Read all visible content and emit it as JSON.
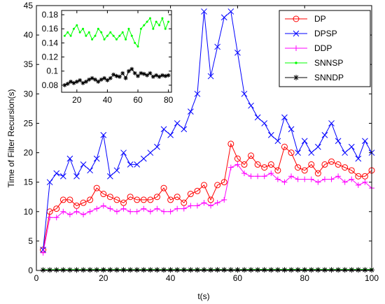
{
  "chart_data": [
    {
      "type": "line",
      "xlabel": "t(s)",
      "ylabel": "Time of Filter Recursion(s)",
      "x": [
        2,
        4,
        6,
        8,
        10,
        12,
        14,
        16,
        18,
        20,
        22,
        24,
        26,
        28,
        30,
        32,
        34,
        36,
        38,
        40,
        42,
        44,
        46,
        48,
        50,
        52,
        54,
        56,
        58,
        60,
        62,
        64,
        66,
        68,
        70,
        72,
        74,
        76,
        78,
        80,
        82,
        84,
        86,
        88,
        90,
        92,
        94,
        96,
        98,
        100
      ],
      "xlim": [
        0,
        100
      ],
      "xticks": [
        0,
        20,
        40,
        60,
        80,
        100
      ],
      "ylim": [
        0,
        45
      ],
      "yticks": [
        0,
        5,
        10,
        15,
        20,
        25,
        30,
        35,
        40,
        45
      ],
      "legend": "northeast",
      "series": [
        {
          "name": "DP",
          "color": "#ff0000",
          "marker": "circle",
          "values": [
            3.5,
            10,
            10.5,
            12,
            12,
            11,
            11.5,
            12,
            14,
            13,
            12.5,
            12,
            11.5,
            12.5,
            12,
            12,
            12,
            12.5,
            14,
            12,
            12.5,
            11.5,
            13,
            13.5,
            14.5,
            12,
            14.5,
            15,
            21.5,
            19,
            18,
            19.5,
            18,
            17.5,
            18,
            17,
            21,
            20,
            17.5,
            17,
            18,
            16.5,
            18,
            18.5,
            18,
            17.5,
            17,
            16,
            16,
            17
          ]
        },
        {
          "name": "DPSP",
          "color": "#0000ff",
          "marker": "x",
          "values": [
            3.5,
            15,
            16.5,
            16,
            19,
            16,
            18,
            17,
            19,
            23,
            16,
            17,
            20,
            18,
            18,
            19,
            20,
            21,
            24,
            23,
            25,
            24,
            27,
            30,
            44,
            33,
            38,
            43,
            44,
            37,
            30,
            28,
            26,
            25,
            23,
            22,
            26,
            24,
            20,
            22,
            20,
            21,
            23,
            25,
            22,
            20,
            21,
            19,
            22,
            20
          ]
        },
        {
          "name": "DDP",
          "color": "#ff00ff",
          "marker": "plus",
          "values": [
            3,
            9,
            9,
            10,
            9.5,
            10,
            9.5,
            10,
            10.5,
            11,
            10.5,
            10,
            10.5,
            10,
            10,
            10.5,
            10,
            10.5,
            10,
            10,
            10.5,
            10.5,
            11,
            11,
            11.5,
            11,
            11.5,
            12,
            17.5,
            18,
            16.5,
            16,
            16,
            16,
            16.5,
            15.5,
            15,
            16,
            15.5,
            15.5,
            15.5,
            15,
            15.5,
            15.5,
            16,
            15,
            15.5,
            14.5,
            15,
            14
          ]
        },
        {
          "name": "SNNSP",
          "color": "#00ff00",
          "marker": "dot",
          "values": [
            0.15,
            0.14,
            0.15,
            0.16,
            0.15,
            0.15,
            0.155,
            0.15,
            0.16,
            0.165,
            0.155,
            0.16,
            0.15,
            0.155,
            0.145,
            0.15,
            0.16,
            0.155,
            0.145,
            0.15,
            0.155,
            0.15,
            0.145,
            0.15,
            0.155,
            0.145,
            0.16,
            0.15,
            0.14,
            0.135,
            0.16,
            0.165,
            0.17,
            0.175,
            0.16,
            0.17,
            0.165,
            0.175,
            0.16,
            0.17,
            0.17,
            0.165,
            0.17,
            0.16,
            0.17,
            0.165,
            0.17,
            0.16,
            0.165,
            0.17
          ]
        },
        {
          "name": "SNNDP",
          "color": "#000000",
          "marker": "star",
          "values": [
            0.08,
            0.078,
            0.08,
            0.082,
            0.08,
            0.08,
            0.082,
            0.085,
            0.083,
            0.085,
            0.087,
            0.083,
            0.085,
            0.088,
            0.09,
            0.088,
            0.085,
            0.088,
            0.09,
            0.087,
            0.09,
            0.095,
            0.093,
            0.092,
            0.097,
            0.09,
            0.1,
            0.103,
            0.097,
            0.093,
            0.097,
            0.096,
            0.094,
            0.097,
            0.092,
            0.094,
            0.092,
            0.094,
            0.093,
            0.094,
            0.093,
            0.094,
            0.092,
            0.095,
            0.093,
            0.094,
            0.092,
            0.093,
            0.094,
            0.093
          ]
        }
      ]
    },
    {
      "type": "line",
      "x": [
        12,
        14,
        16,
        18,
        20,
        22,
        24,
        26,
        28,
        30,
        32,
        34,
        36,
        38,
        40,
        42,
        44,
        46,
        48,
        50,
        52,
        54,
        56,
        58,
        60,
        62,
        64,
        66,
        68,
        70,
        72,
        74,
        76,
        78,
        80
      ],
      "xlim": [
        10,
        82
      ],
      "xticks": [
        20,
        40,
        60,
        80
      ],
      "ylim": [
        0.07,
        0.186
      ],
      "yticks": [
        0.08,
        0.1,
        0.12,
        0.14,
        0.16,
        0.18
      ],
      "series": [
        {
          "color": "#00ff00",
          "marker": "dot",
          "values": [
            0.15,
            0.155,
            0.15,
            0.16,
            0.165,
            0.155,
            0.16,
            0.15,
            0.155,
            0.145,
            0.15,
            0.16,
            0.155,
            0.145,
            0.15,
            0.155,
            0.15,
            0.145,
            0.15,
            0.155,
            0.145,
            0.16,
            0.15,
            0.14,
            0.135,
            0.16,
            0.165,
            0.17,
            0.175,
            0.16,
            0.17,
            0.165,
            0.175,
            0.16,
            0.17
          ]
        },
        {
          "color": "#000000",
          "marker": "star",
          "values": [
            0.08,
            0.082,
            0.085,
            0.083,
            0.085,
            0.087,
            0.083,
            0.085,
            0.088,
            0.09,
            0.088,
            0.085,
            0.088,
            0.09,
            0.087,
            0.09,
            0.095,
            0.093,
            0.092,
            0.097,
            0.09,
            0.1,
            0.103,
            0.097,
            0.093,
            0.097,
            0.096,
            0.094,
            0.097,
            0.092,
            0.094,
            0.092,
            0.094,
            0.093,
            0.094
          ]
        }
      ]
    }
  ]
}
